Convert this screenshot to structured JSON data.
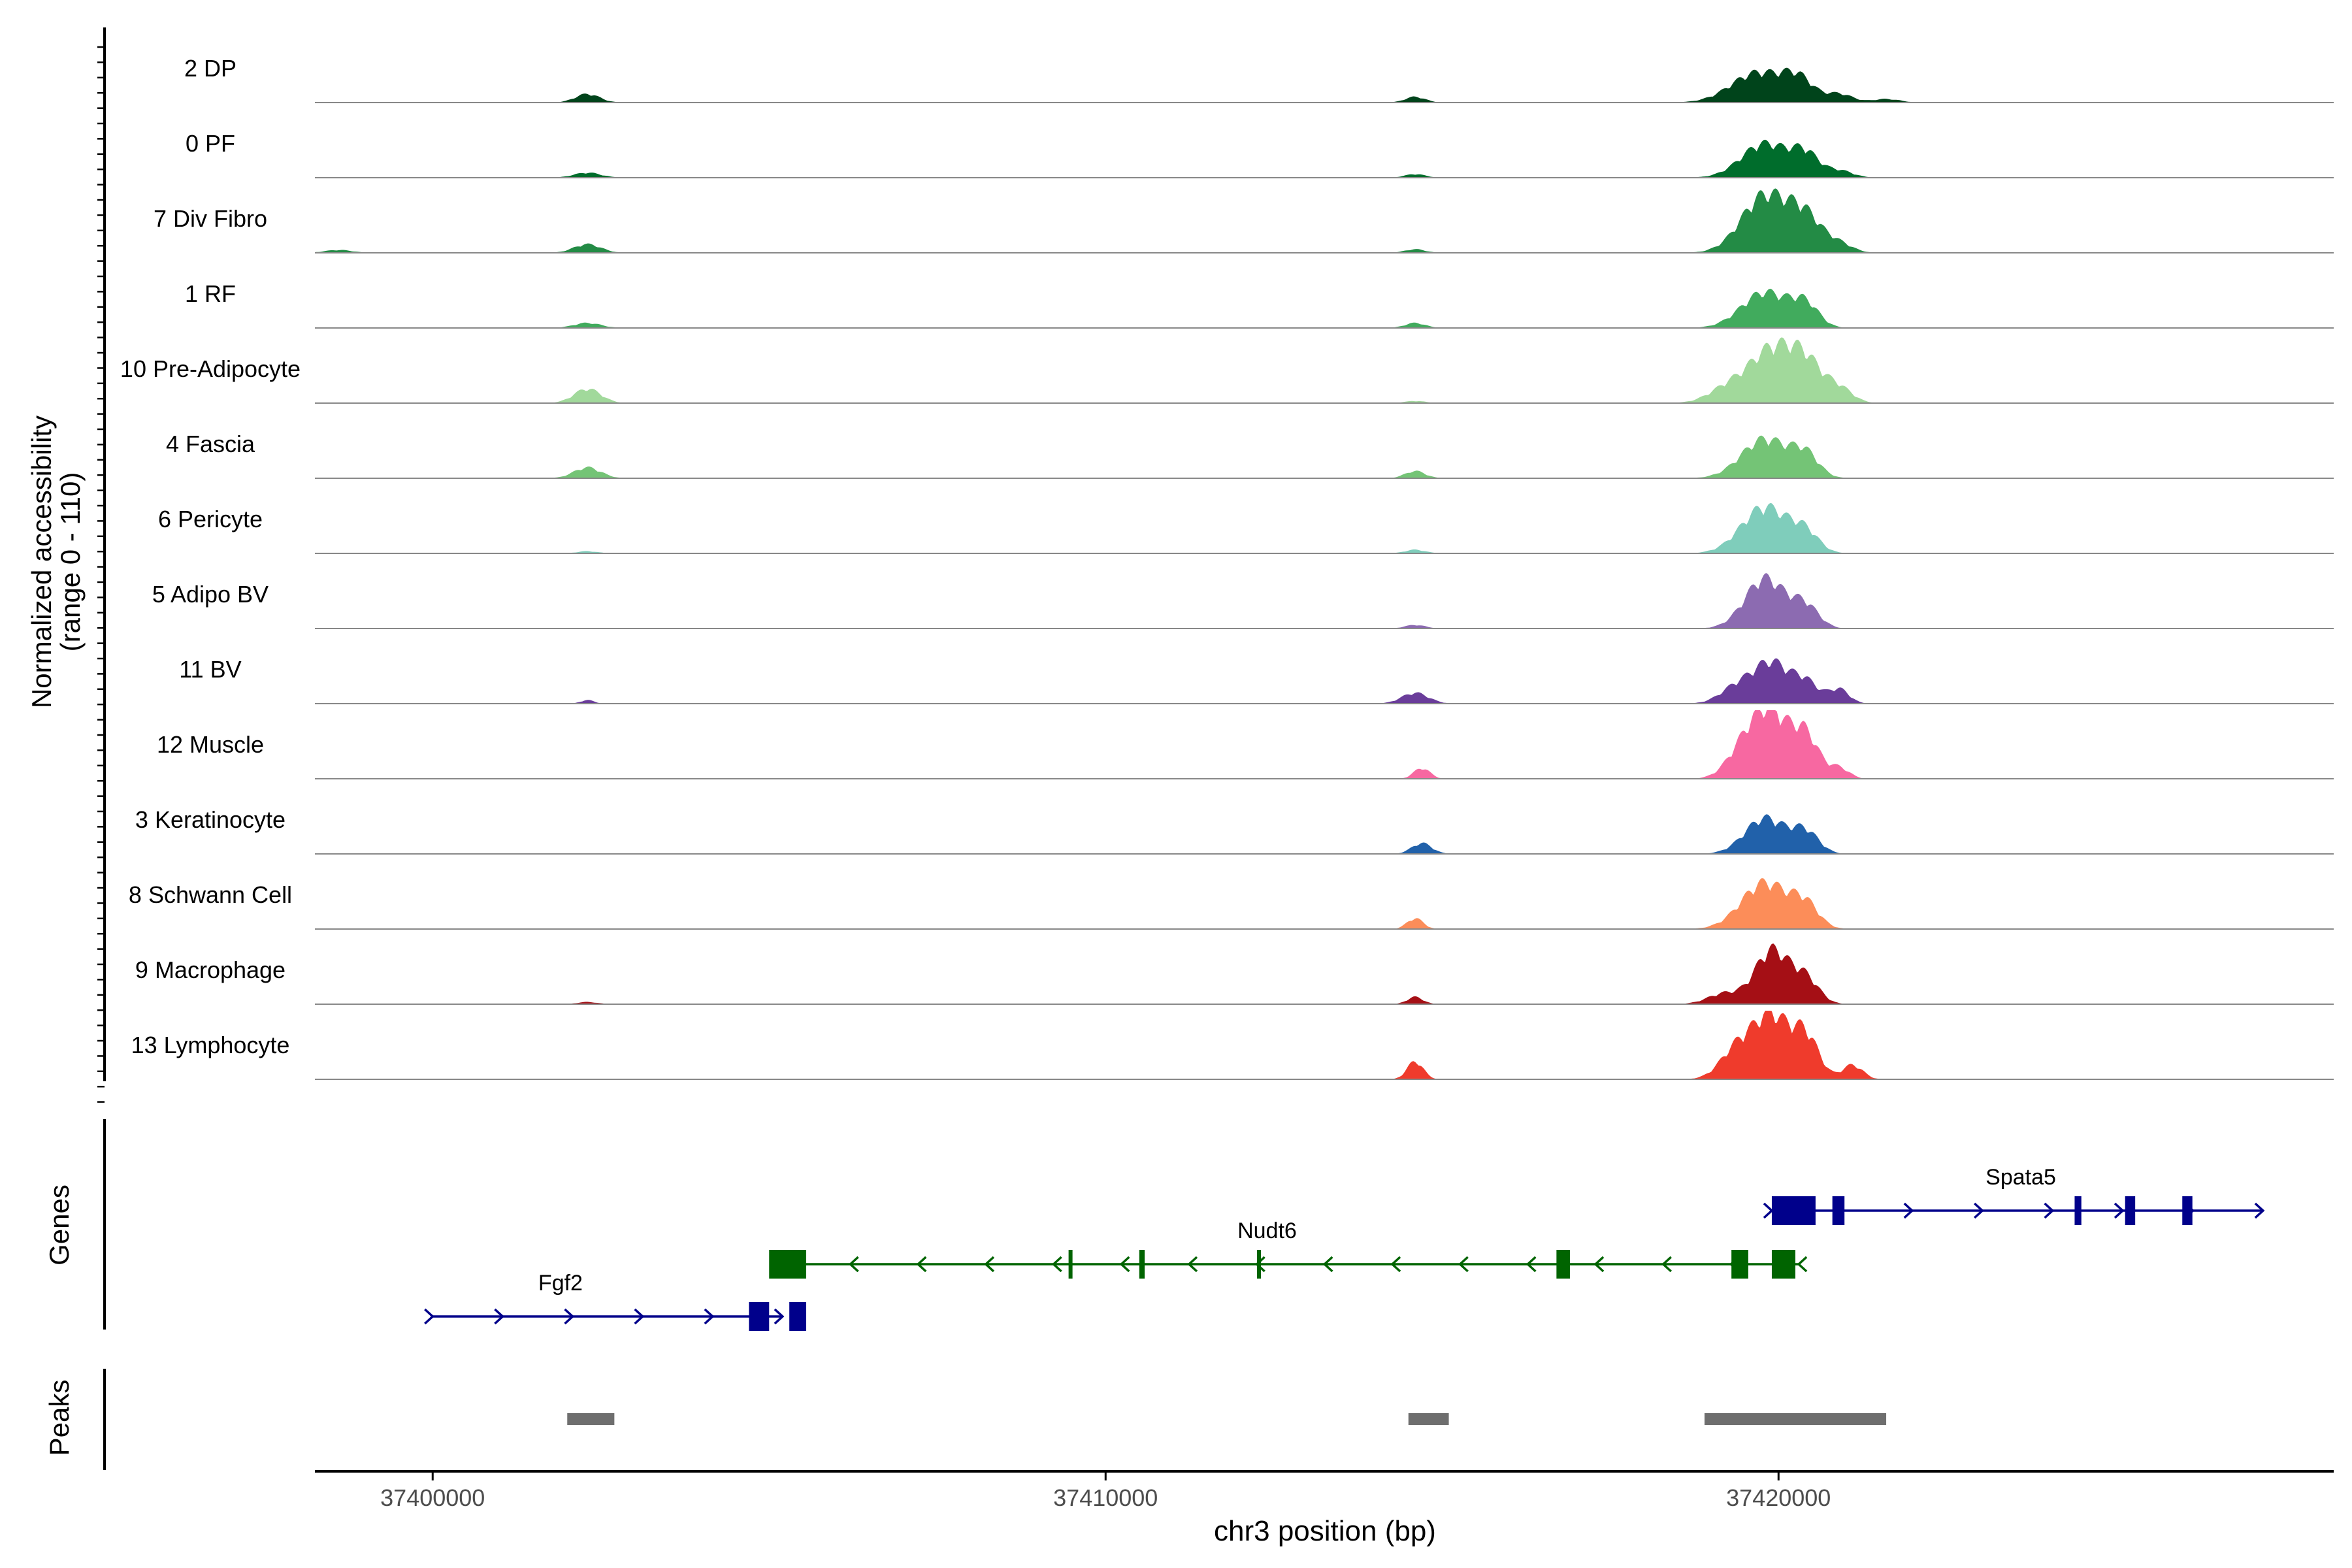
{
  "chart_data": {
    "type": "area",
    "xlabel": "chr3 position (bp)",
    "ylabel_line1": "Normalized accessibility",
    "ylabel_line2": "(range 0 - 110)",
    "ylim": [
      0,
      110
    ],
    "xlim": [
      37398250,
      37428250
    ],
    "x_ticks": [
      37400000,
      37410000,
      37420000
    ],
    "x_tick_labels": [
      "37400000",
      "37410000",
      "37420000"
    ],
    "tracks": [
      {
        "name": "2 DP",
        "color": "#00441b",
        "peaks": [
          [
            37402300,
            0.12,
            180
          ],
          [
            37414600,
            0.08,
            150
          ],
          [
            37419700,
            0.42,
            400
          ],
          [
            37420300,
            0.28,
            220
          ],
          [
            37420900,
            0.12,
            200
          ],
          [
            37421600,
            0.05,
            200
          ]
        ]
      },
      {
        "name": "0 PF",
        "color": "#006d2c",
        "peaks": [
          [
            37402300,
            0.07,
            200
          ],
          [
            37414600,
            0.05,
            150
          ],
          [
            37419800,
            0.48,
            350
          ],
          [
            37420400,
            0.3,
            200
          ],
          [
            37420900,
            0.1,
            200
          ]
        ]
      },
      {
        "name": "7 Div Fibro",
        "color": "#238b45",
        "peaks": [
          [
            37398600,
            0.04,
            200
          ],
          [
            37402300,
            0.12,
            200
          ],
          [
            37414600,
            0.05,
            150
          ],
          [
            37419800,
            0.8,
            350
          ],
          [
            37420400,
            0.45,
            250
          ],
          [
            37420900,
            0.12,
            200
          ]
        ]
      },
      {
        "name": "1 RF",
        "color": "#41ab5d",
        "peaks": [
          [
            37402300,
            0.07,
            200
          ],
          [
            37414600,
            0.07,
            150
          ],
          [
            37419800,
            0.5,
            350
          ],
          [
            37420400,
            0.3,
            200
          ]
        ]
      },
      {
        "name": "10 Pre-Adipocyte",
        "color": "#a1d99b",
        "peaks": [
          [
            37402300,
            0.2,
            200
          ],
          [
            37414600,
            0.03,
            150
          ],
          [
            37419300,
            0.25,
            300
          ],
          [
            37419900,
            0.7,
            300
          ],
          [
            37420400,
            0.55,
            250
          ],
          [
            37420900,
            0.2,
            200
          ]
        ]
      },
      {
        "name": "4 Fascia",
        "color": "#74c476",
        "peaks": [
          [
            37402300,
            0.15,
            200
          ],
          [
            37414600,
            0.1,
            150
          ],
          [
            37419800,
            0.55,
            350
          ],
          [
            37420400,
            0.3,
            200
          ]
        ]
      },
      {
        "name": "6 Pericyte",
        "color": "#7fcdbb",
        "peaks": [
          [
            37402300,
            0.03,
            150
          ],
          [
            37414600,
            0.05,
            150
          ],
          [
            37419800,
            0.65,
            350
          ],
          [
            37420400,
            0.25,
            200
          ]
        ]
      },
      {
        "name": "5 Adipo BV",
        "color": "#8c6bb1",
        "peaks": [
          [
            37414600,
            0.05,
            150
          ],
          [
            37419800,
            0.7,
            300
          ],
          [
            37420400,
            0.3,
            200
          ]
        ]
      },
      {
        "name": "11 BV",
        "color": "#6a3d9a",
        "peaks": [
          [
            37402300,
            0.05,
            100
          ],
          [
            37414600,
            0.15,
            200
          ],
          [
            37419400,
            0.25,
            250
          ],
          [
            37419900,
            0.55,
            250
          ],
          [
            37420400,
            0.3,
            200
          ],
          [
            37420900,
            0.2,
            150
          ]
        ]
      },
      {
        "name": "12 Muscle",
        "color": "#f768a1",
        "peaks": [
          [
            37414700,
            0.15,
            120
          ],
          [
            37419500,
            0.45,
            250
          ],
          [
            37419900,
            0.85,
            250
          ],
          [
            37420400,
            0.6,
            200
          ],
          [
            37420900,
            0.15,
            150
          ]
        ]
      },
      {
        "name": "3 Keratinocyte",
        "color": "#2161aa",
        "peaks": [
          [
            37414700,
            0.15,
            150
          ],
          [
            37419800,
            0.5,
            300
          ],
          [
            37420400,
            0.3,
            200
          ]
        ]
      },
      {
        "name": "8 Schwann Cell",
        "color": "#fc8d59",
        "peaks": [
          [
            37414600,
            0.15,
            120
          ],
          [
            37419800,
            0.65,
            350
          ],
          [
            37420400,
            0.3,
            200
          ]
        ]
      },
      {
        "name": "9 Macrophage",
        "color": "#a50f15",
        "peaks": [
          [
            37402300,
            0.03,
            150
          ],
          [
            37414600,
            0.1,
            120
          ],
          [
            37419200,
            0.15,
            250
          ],
          [
            37419900,
            0.75,
            250
          ],
          [
            37420400,
            0.35,
            200
          ]
        ]
      },
      {
        "name": "13 Lymphocyte",
        "color": "#ef3b2c",
        "peaks": [
          [
            37414600,
            0.25,
            120
          ],
          [
            37419400,
            0.45,
            250
          ],
          [
            37419900,
            0.85,
            250
          ],
          [
            37420400,
            0.6,
            200
          ],
          [
            37421100,
            0.2,
            150
          ]
        ]
      }
    ],
    "genes_label": "Genes",
    "genes": [
      {
        "name": "Fgf2",
        "strand": "+",
        "start": 37400000,
        "end": 37405200,
        "row": 2,
        "color": "#00008b",
        "exons": [
          [
            37404700,
            37405000
          ],
          [
            37405300,
            37405550
          ]
        ],
        "label_x": 37401900
      },
      {
        "name": "Nudt6",
        "strand": "-",
        "start": 37405200,
        "end": 37420300,
        "row": 1,
        "color": "#006400",
        "exons": [
          [
            37405000,
            37405550
          ],
          [
            37409450,
            37409500
          ],
          [
            37410500,
            37410580
          ],
          [
            37412250,
            37412300
          ],
          [
            37416700,
            37416900
          ],
          [
            37419300,
            37419550
          ],
          [
            37419900,
            37420250
          ]
        ],
        "label_x": 37412400
      },
      {
        "name": "Spata5",
        "strand": "+",
        "start": 37419900,
        "end": 37427200,
        "row": 0,
        "color": "#00008b",
        "exons": [
          [
            37419900,
            37420550
          ],
          [
            37420800,
            37420980
          ],
          [
            37424400,
            37424500
          ],
          [
            37425150,
            37425300
          ],
          [
            37426000,
            37426150
          ]
        ],
        "label_x": 37423600
      }
    ],
    "peaks_label": "Peaks",
    "peak_regions": [
      [
        37402000,
        37402700
      ],
      [
        37414500,
        37415100
      ],
      [
        37418900,
        37421600
      ]
    ]
  }
}
